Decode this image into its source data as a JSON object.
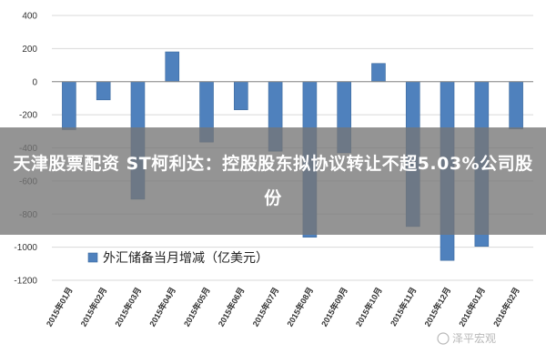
{
  "headline": "天津股票配资 ST柯利达：控股股东拟协议转让不超5.03%公司股份",
  "watermark": "泽平宏观",
  "colors": {
    "bar": "#4f81bd",
    "bar_stroke": "#3d6a9e",
    "grid": "#d9d9d9",
    "axis": "#888888",
    "overlay": "#767676"
  },
  "chart_data": {
    "type": "bar",
    "categories": [
      "2015年01月",
      "2015年02月",
      "2015年03月",
      "2015年04月",
      "2015年05月",
      "2015年06月",
      "2015年07月",
      "2015年08月",
      "2015年09月",
      "2015年10月",
      "2015年11月",
      "2015年12月",
      "2016年01月",
      "2016年02月"
    ],
    "series": [
      {
        "name": "外汇储备当月增减（亿美元）",
        "values": [
          -290,
          -110,
          -710,
          180,
          -365,
          -170,
          -420,
          -940,
          -430,
          110,
          -875,
          -1080,
          -995,
          -285
        ]
      }
    ],
    "ylim": [
      -1200,
      400
    ],
    "yticks": [
      400,
      200,
      0,
      -200,
      -400,
      -600,
      -800,
      -1000,
      -1200
    ],
    "grid": true,
    "legend_position": "bottom-left"
  }
}
